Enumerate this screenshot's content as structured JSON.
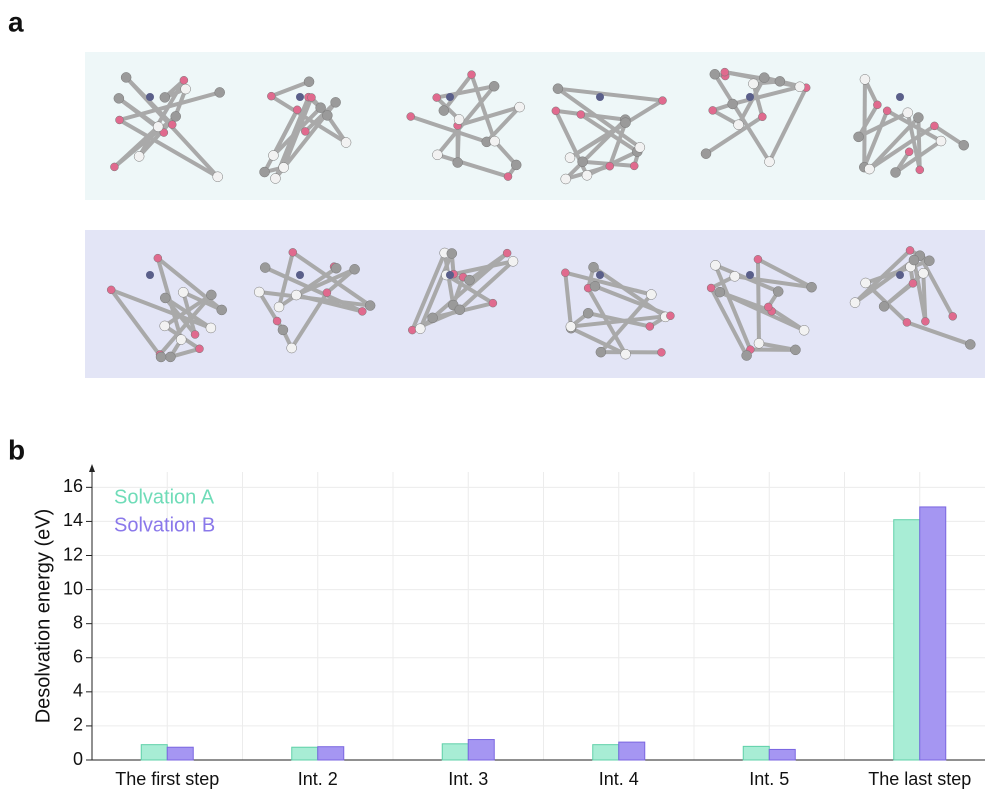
{
  "panel_a_label": "a",
  "chart_data": {
    "type": "bar",
    "panel_label": "b",
    "ylabel": "Desolvation energy (eV)",
    "categories": [
      "The first step",
      "Int. 2",
      "Int. 3",
      "Int. 4",
      "Int. 5",
      "The last step"
    ],
    "series": [
      {
        "name": "Solvation A",
        "color": "#a8edd5",
        "values": [
          0.9,
          0.75,
          0.95,
          0.9,
          0.8,
          14.1
        ]
      },
      {
        "name": "Solvation B",
        "color": "#a596f2",
        "values": [
          0.75,
          0.78,
          1.2,
          1.05,
          0.62,
          14.85
        ]
      }
    ],
    "ylim": [
      0,
      16.9
    ],
    "yticks": [
      0,
      2,
      4,
      6,
      8,
      10,
      12,
      14,
      16
    ],
    "grid": true,
    "legend": "upper left"
  }
}
